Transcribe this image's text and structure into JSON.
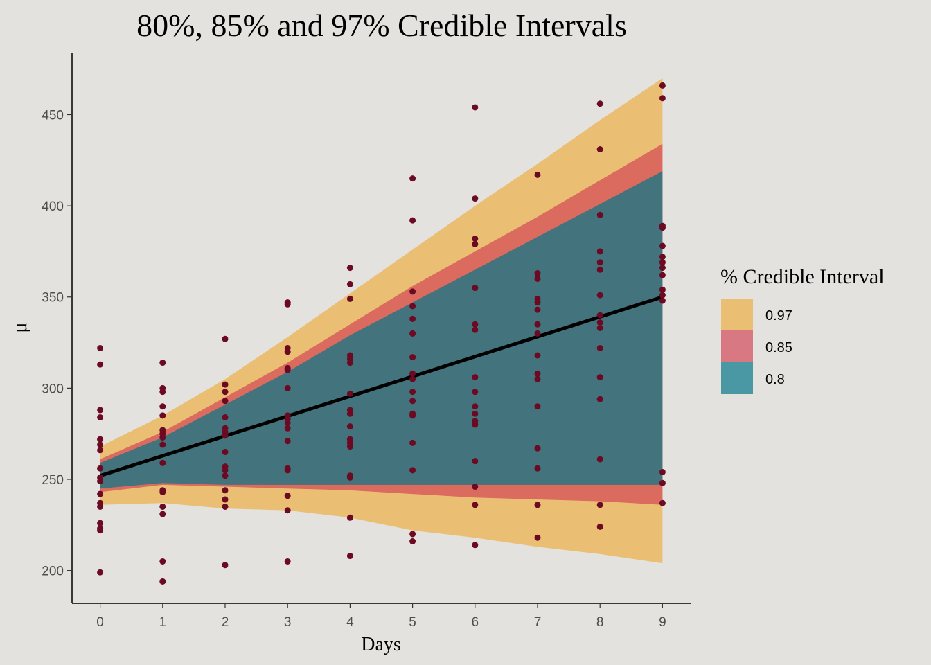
{
  "chart_data": {
    "type": "line",
    "title": "80%, 85% and 97% Credible Intervals",
    "xlabel": "Days",
    "ylabel": "μ",
    "xlim": [
      -0.45,
      9.45
    ],
    "ylim": [
      182,
      484
    ],
    "x_ticks": [
      0,
      1,
      2,
      3,
      4,
      5,
      6,
      7,
      8,
      9
    ],
    "y_ticks": [
      200,
      250,
      300,
      350,
      400,
      450
    ],
    "grid": false,
    "legend": {
      "title": "% Credible Interval",
      "position": "right",
      "entries": [
        {
          "label": "0.97",
          "color": "#eabf74"
        },
        {
          "label": "0.85",
          "color": "#d87882"
        },
        {
          "label": "0.8",
          "color": "#4a98a4"
        }
      ]
    },
    "bands": [
      {
        "level": "0.97",
        "fill": "#eabf74",
        "x": [
          0,
          1,
          2,
          3,
          4,
          5,
          6,
          7,
          8,
          9
        ],
        "upper": [
          268,
          285,
          305,
          328,
          352,
          376,
          400,
          423,
          447,
          470
        ],
        "lower": [
          236,
          237,
          234,
          233,
          229,
          222,
          218,
          213,
          209,
          204
        ]
      },
      {
        "level": "0.85",
        "fill": "#db6a5f",
        "x": [
          0,
          1,
          2,
          3,
          4,
          5,
          6,
          7,
          8,
          9
        ],
        "upper": [
          261,
          276,
          295,
          314,
          335,
          356,
          375,
          394,
          414,
          434
        ],
        "lower": [
          243,
          247,
          246,
          245,
          244,
          242,
          240,
          239,
          238,
          236
        ]
      },
      {
        "level": "0.8",
        "fill": "#43737d",
        "x": [
          0,
          1,
          2,
          3,
          4,
          5,
          6,
          7,
          8,
          9
        ],
        "upper": [
          259,
          273,
          291,
          309,
          329,
          347,
          365,
          383,
          401,
          419
        ],
        "lower": [
          245,
          248,
          247,
          247,
          247,
          247,
          247,
          247,
          247,
          247
        ]
      }
    ],
    "mean_line": {
      "x": [
        0,
        9
      ],
      "y": [
        252,
        350
      ],
      "color": "#000000"
    },
    "points": {
      "color": "#6b0a22",
      "data": [
        [
          0,
          199
        ],
        [
          0,
          222
        ],
        [
          0,
          223
        ],
        [
          0,
          226
        ],
        [
          0,
          235
        ],
        [
          0,
          237
        ],
        [
          0,
          242
        ],
        [
          0,
          249
        ],
        [
          0,
          251
        ],
        [
          0,
          256
        ],
        [
          0,
          266
        ],
        [
          0,
          269
        ],
        [
          0,
          272
        ],
        [
          0,
          284
        ],
        [
          0,
          288
        ],
        [
          0,
          313
        ],
        [
          0,
          322
        ],
        [
          1,
          194
        ],
        [
          1,
          205
        ],
        [
          1,
          231
        ],
        [
          1,
          235
        ],
        [
          1,
          243
        ],
        [
          1,
          244
        ],
        [
          1,
          259
        ],
        [
          1,
          269
        ],
        [
          1,
          273
        ],
        [
          1,
          275
        ],
        [
          1,
          277
        ],
        [
          1,
          285
        ],
        [
          1,
          290
        ],
        [
          1,
          298
        ],
        [
          1,
          300
        ],
        [
          1,
          314
        ],
        [
          2,
          203
        ],
        [
          2,
          235
        ],
        [
          2,
          239
        ],
        [
          2,
          244
        ],
        [
          2,
          252
        ],
        [
          2,
          255
        ],
        [
          2,
          257
        ],
        [
          2,
          265
        ],
        [
          2,
          274
        ],
        [
          2,
          276
        ],
        [
          2,
          278
        ],
        [
          2,
          284
        ],
        [
          2,
          293
        ],
        [
          2,
          298
        ],
        [
          2,
          302
        ],
        [
          2,
          327
        ],
        [
          3,
          205
        ],
        [
          3,
          233
        ],
        [
          3,
          241
        ],
        [
          3,
          255
        ],
        [
          3,
          256
        ],
        [
          3,
          271
        ],
        [
          3,
          278
        ],
        [
          3,
          281
        ],
        [
          3,
          283
        ],
        [
          3,
          285
        ],
        [
          3,
          300
        ],
        [
          3,
          310
        ],
        [
          3,
          311
        ],
        [
          3,
          320
        ],
        [
          3,
          322
        ],
        [
          3,
          346
        ],
        [
          3,
          347
        ],
        [
          4,
          208
        ],
        [
          4,
          229
        ],
        [
          4,
          251
        ],
        [
          4,
          252
        ],
        [
          4,
          268
        ],
        [
          4,
          270
        ],
        [
          4,
          272
        ],
        [
          4,
          279
        ],
        [
          4,
          286
        ],
        [
          4,
          288
        ],
        [
          4,
          297
        ],
        [
          4,
          314
        ],
        [
          4,
          316
        ],
        [
          4,
          318
        ],
        [
          4,
          349
        ],
        [
          4,
          357
        ],
        [
          4,
          366
        ],
        [
          5,
          216
        ],
        [
          5,
          220
        ],
        [
          5,
          255
        ],
        [
          5,
          270
        ],
        [
          5,
          285
        ],
        [
          5,
          286
        ],
        [
          5,
          293
        ],
        [
          5,
          298
        ],
        [
          5,
          305
        ],
        [
          5,
          308
        ],
        [
          5,
          317
        ],
        [
          5,
          330
        ],
        [
          5,
          338
        ],
        [
          5,
          345
        ],
        [
          5,
          353
        ],
        [
          5,
          392
        ],
        [
          5,
          415
        ],
        [
          6,
          214
        ],
        [
          6,
          236
        ],
        [
          6,
          246
        ],
        [
          6,
          260
        ],
        [
          6,
          280
        ],
        [
          6,
          282
        ],
        [
          6,
          286
        ],
        [
          6,
          290
        ],
        [
          6,
          298
        ],
        [
          6,
          306
        ],
        [
          6,
          332
        ],
        [
          6,
          335
        ],
        [
          6,
          355
        ],
        [
          6,
          379
        ],
        [
          6,
          382
        ],
        [
          6,
          404
        ],
        [
          6,
          454
        ],
        [
          7,
          218
        ],
        [
          7,
          236
        ],
        [
          7,
          256
        ],
        [
          7,
          267
        ],
        [
          7,
          290
        ],
        [
          7,
          305
        ],
        [
          7,
          308
        ],
        [
          7,
          318
        ],
        [
          7,
          330
        ],
        [
          7,
          335
        ],
        [
          7,
          343
        ],
        [
          7,
          347
        ],
        [
          7,
          349
        ],
        [
          7,
          360
        ],
        [
          7,
          363
        ],
        [
          7,
          417
        ],
        [
          8,
          224
        ],
        [
          8,
          236
        ],
        [
          8,
          261
        ],
        [
          8,
          294
        ],
        [
          8,
          306
        ],
        [
          8,
          322
        ],
        [
          8,
          333
        ],
        [
          8,
          336
        ],
        [
          8,
          340
        ],
        [
          8,
          351
        ],
        [
          8,
          365
        ],
        [
          8,
          369
        ],
        [
          8,
          375
        ],
        [
          8,
          395
        ],
        [
          8,
          431
        ],
        [
          8,
          456
        ],
        [
          9,
          237
        ],
        [
          9,
          248
        ],
        [
          9,
          254
        ],
        [
          9,
          348
        ],
        [
          9,
          351
        ],
        [
          9,
          354
        ],
        [
          9,
          362
        ],
        [
          9,
          366
        ],
        [
          9,
          369
        ],
        [
          9,
          372
        ],
        [
          9,
          378
        ],
        [
          9,
          388
        ],
        [
          9,
          389
        ],
        [
          9,
          459
        ],
        [
          9,
          466
        ]
      ]
    }
  }
}
